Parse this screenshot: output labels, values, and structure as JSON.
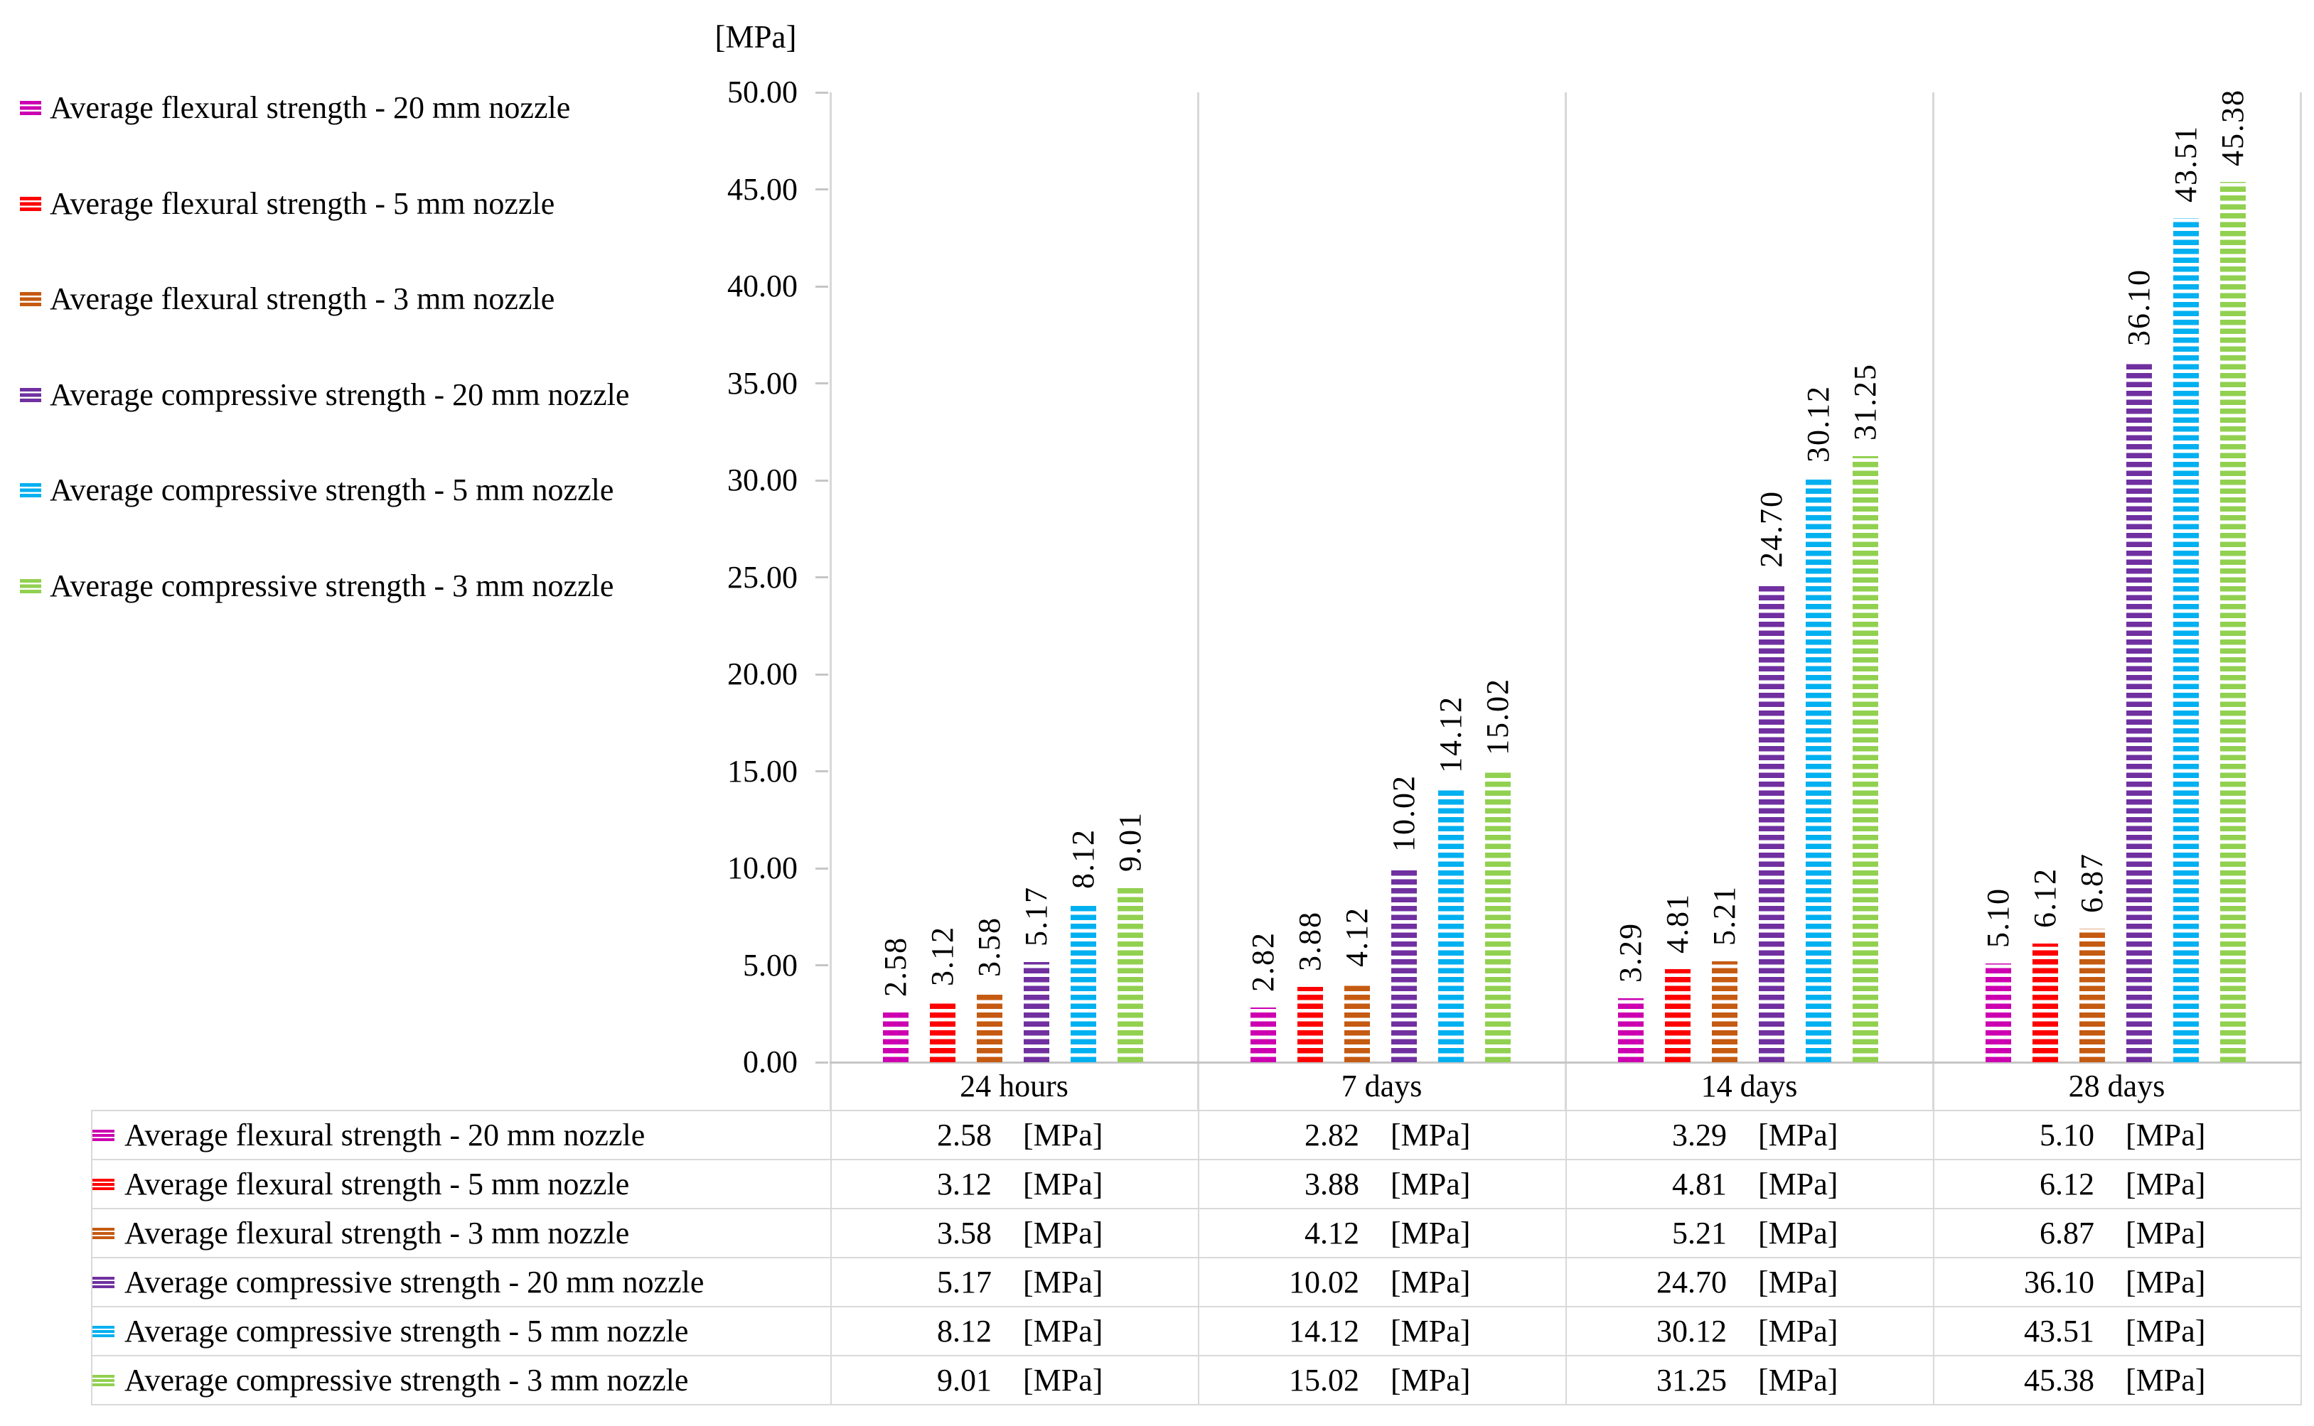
{
  "chart_data": {
    "type": "bar",
    "axis_unit_title": "[MPa]",
    "unit": "[MPa]",
    "categories": [
      "24 hours",
      "7 days",
      "14 days",
      "28 days"
    ],
    "series": [
      {
        "name": "Average flexural strength - 20 mm nozzle",
        "color": "#CC00B0",
        "values": [
          2.58,
          2.82,
          3.29,
          5.1
        ]
      },
      {
        "name": "Average flexural strength - 5 mm nozzle",
        "color": "#FF0000",
        "values": [
          3.12,
          3.88,
          4.81,
          6.12
        ]
      },
      {
        "name": "Average flexural strength - 3 mm nozzle",
        "color": "#C55A11",
        "values": [
          3.58,
          4.12,
          5.21,
          6.87
        ]
      },
      {
        "name": "Average compressive strength - 20 mm nozzle",
        "color": "#7030A0",
        "values": [
          5.17,
          10.02,
          24.7,
          36.1
        ]
      },
      {
        "name": "Average compressive strength - 5 mm nozzle",
        "color": "#00B0F0",
        "values": [
          8.12,
          14.12,
          30.12,
          43.51
        ]
      },
      {
        "name": "Average compressive strength - 3 mm nozzle",
        "color": "#92D050",
        "values": [
          9.01,
          15.02,
          31.25,
          45.38
        ]
      }
    ],
    "y_axis": {
      "min": 0,
      "max": 50,
      "step": 5,
      "tick_decimals": 2
    },
    "value_labels": {
      "rotation_degrees": 90,
      "decimals": 2
    },
    "legend_position": "left",
    "grid": {
      "horizontal_gridlines": false,
      "vertical_category_separators": true
    },
    "data_table": {
      "visible": true,
      "legend_keys": true,
      "value_decimals": 2,
      "unit_suffix": "[MPa]"
    }
  }
}
